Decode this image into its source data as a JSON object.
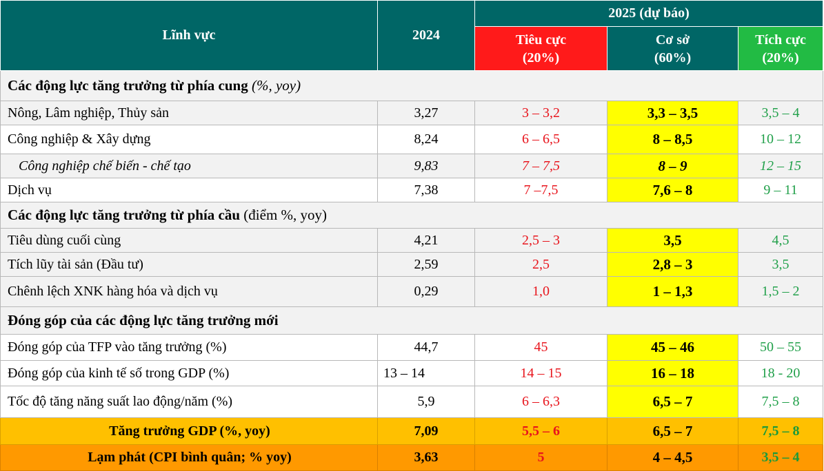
{
  "header": {
    "col_sector": "Lĩnh vực",
    "col_2024": "2024",
    "col_2025": "2025 (dự báo)",
    "negative": {
      "label": "Tiêu cực",
      "weight": "(20%)"
    },
    "base": {
      "label": "Cơ sở",
      "weight": "(60%)"
    },
    "positive": {
      "label": "Tích cực",
      "weight": "(20%)"
    }
  },
  "sections": [
    {
      "title_bold": "Các động lực tăng trưởng từ phía cung",
      "title_suffix": "(%, yoy)",
      "rows": [
        {
          "name": "Nông, Lâm nghiệp, Thủy sản",
          "v2024": "3,27",
          "neg": "3 – 3,2",
          "base": "3,3 – 3,5",
          "pos": "3,5 – 4"
        },
        {
          "name": "Công nghiệp & Xây dựng",
          "v2024": "8,24",
          "neg": "6 – 6,5",
          "base": "8 – 8,5",
          "pos": "10 – 12"
        },
        {
          "name": "Công nghiệp chế biến - chế tạo",
          "v2024": "9,83",
          "neg": "7 – 7,5",
          "base": "8 –  9",
          "pos": "12 – 15"
        },
        {
          "name": "Dịch vụ",
          "v2024": "7,38",
          "neg": "7 –7,5",
          "base": "7,6 – 8",
          "pos": "9 – 11"
        }
      ]
    },
    {
      "title_bold": "Các động lực tăng trưởng từ phía cầu",
      "title_suffix": "(điểm %, yoy)",
      "rows": [
        {
          "name": "Tiêu dùng cuối cùng",
          "v2024": "4,21",
          "neg": "2,5 – 3",
          "base": "3,5",
          "pos": "4,5"
        },
        {
          "name": "Tích lũy tài sản (Đầu tư)",
          "v2024": "2,59",
          "neg": "2,5",
          "base": "2,8 – 3",
          "pos": "3,5"
        },
        {
          "name": "Chênh lệch XNK hàng hóa và dịch vụ",
          "v2024": "0,29",
          "neg": "1,0",
          "base": "1 – 1,3",
          "pos": "1,5 – 2"
        }
      ]
    },
    {
      "title_bold": "Đóng góp của các động lực tăng trưởng mới",
      "title_suffix": "",
      "rows": [
        {
          "name": "Đóng góp của TFP vào tăng trưởng (%)",
          "v2024": "44,7",
          "neg": "45",
          "base": "45 – 46",
          "pos": "50 – 55"
        },
        {
          "name": "Đóng góp của kinh tế số trong GDP (%)",
          "v2024": "13 – 14",
          "neg": "14 – 15",
          "base": "16 – 18",
          "pos": "18 - 20"
        },
        {
          "name": "Tốc độ tăng năng suất lao động/năm (%)",
          "v2024": "5,9",
          "neg": "6 – 6,3",
          "base": "6,5 – 7",
          "pos": "7,5 – 8"
        }
      ]
    }
  ],
  "summary": {
    "gdp": {
      "name": "Tăng trưởng GDP (%, yoy)",
      "v2024": "7,09",
      "neg": "5,5 – 6",
      "base": "6,5 – 7",
      "pos": "7,5 – 8"
    },
    "cpi": {
      "name": "Lạm phát (CPI bình quân; % yoy)",
      "v2024": "3,63",
      "neg": "5",
      "base": "4 – 4,5",
      "pos": "3,5 – 4"
    }
  },
  "colors": {
    "header": "#006666",
    "negative": "#ff1a1a",
    "positive": "#22bb44",
    "base_highlight": "#ffff00",
    "gdp_row": "#ffc000",
    "cpi_row": "#ff9900"
  }
}
